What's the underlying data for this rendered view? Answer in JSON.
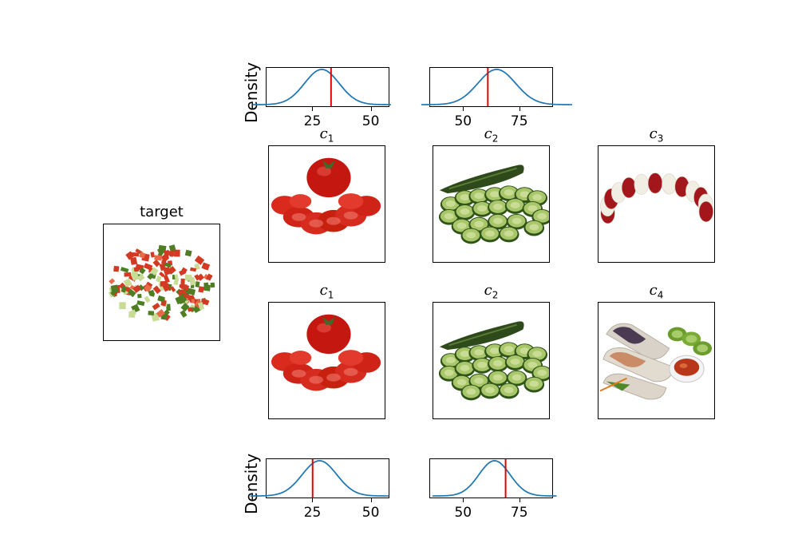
{
  "target_title": "target",
  "candidates": [
    {
      "sym": "c",
      "sub": "1",
      "content": "tomato slices"
    },
    {
      "sym": "c",
      "sub": "2",
      "content": "cucumber slices"
    },
    {
      "sym": "c",
      "sub": "3",
      "content": "caprese skewer"
    },
    {
      "sym": "c",
      "sub": "1",
      "content": "tomato slices"
    },
    {
      "sym": "c",
      "sub": "2",
      "content": "cucumber slices"
    },
    {
      "sym": "c",
      "sub": "4",
      "content": "spring rolls with dip"
    }
  ],
  "density_ylabel": "Density",
  "chart_data": [
    {
      "type": "line",
      "name": "top-left",
      "ylabel": "Density",
      "xlim": [
        5,
        58
      ],
      "xticks": [
        25,
        50
      ],
      "mean": 29,
      "sd": 7.5,
      "marker": 33,
      "colors": {
        "curve": "#1f77b4",
        "marker": "#e00000"
      }
    },
    {
      "type": "line",
      "name": "top-middle",
      "ylabel": "",
      "xlim": [
        35,
        90
      ],
      "xticks": [
        50,
        75
      ],
      "mean": 65,
      "sd": 8.5,
      "marker": 61,
      "colors": {
        "curve": "#1f77b4",
        "marker": "#e00000"
      }
    },
    {
      "type": "line",
      "name": "bottom-left",
      "ylabel": "Density",
      "xlim": [
        5,
        58
      ],
      "xticks": [
        25,
        50
      ],
      "mean": 28,
      "sd": 7.5,
      "marker": 25,
      "colors": {
        "curve": "#1f77b4",
        "marker": "#e00000"
      }
    },
    {
      "type": "line",
      "name": "bottom-middle",
      "ylabel": "",
      "xlim": [
        35,
        90
      ],
      "xticks": [
        50,
        75
      ],
      "mean": 64,
      "sd": 7.0,
      "marker": 69,
      "colors": {
        "curve": "#1f77b4",
        "marker": "#e00000"
      }
    }
  ]
}
